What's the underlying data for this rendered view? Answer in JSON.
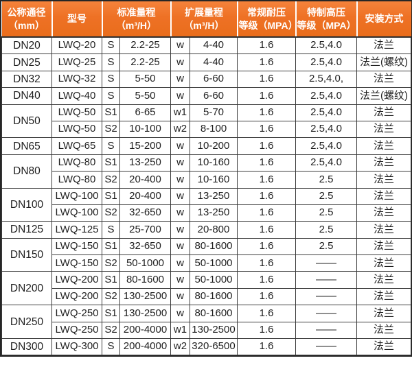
{
  "colors": {
    "header_bg": "#ee7125",
    "header_bg_top": "#f5833b",
    "header_bg_bottom": "#e96d1c",
    "header_text": "#ffffff",
    "grid_line": "#3b3b3b",
    "outer_border": "#262626",
    "body_text": "#1f1f1f",
    "row_bg": "#ffffff"
  },
  "table": {
    "columns": [
      {
        "line1": "公称通径",
        "line2": "（mm）"
      },
      {
        "line1": "型号"
      },
      {
        "line1": "标准量程",
        "line2": "（m³/H）"
      },
      {
        "line1": "扩展量程",
        "line2": "（m³/H）"
      },
      {
        "line1": "常规耐压",
        "line2": "等级（MPA）"
      },
      {
        "line1": "特制高压",
        "line2": "等级（MPA）"
      },
      {
        "line1": "安装方式"
      }
    ],
    "rows": [
      {
        "dn": "DN20",
        "dn_rowspan": 1,
        "model": "LWQ-20",
        "std_code": "S",
        "std_range": "2.2-25",
        "ext_code": "w",
        "ext_range": "4-40",
        "normal_pressure": "1.6",
        "high_pressure": "2.5,4.0",
        "install": "法兰"
      },
      {
        "dn": "DN25",
        "dn_rowspan": 1,
        "model": "LWQ-25",
        "std_code": "S",
        "std_range": "2.2-25",
        "ext_code": "w",
        "ext_range": "4-40",
        "normal_pressure": "1.6",
        "high_pressure": "2.5,4.0",
        "install": "法兰(螺纹)"
      },
      {
        "dn": "DN32",
        "dn_rowspan": 1,
        "model": "LWQ-32",
        "std_code": "S",
        "std_range": "5-50",
        "ext_code": "w",
        "ext_range": "6-60",
        "normal_pressure": "1.6",
        "high_pressure": "2.5,4.0,",
        "install": "法兰"
      },
      {
        "dn": "DN40",
        "dn_rowspan": 1,
        "model": "LWQ-40",
        "std_code": "S",
        "std_range": "5-50",
        "ext_code": "w",
        "ext_range": "6-60",
        "normal_pressure": "1.6",
        "high_pressure": "2.5,4.0",
        "install": "法兰(螺纹)"
      },
      {
        "dn": "DN50",
        "dn_rowspan": 2,
        "model": "LWQ-50",
        "std_code": "S1",
        "std_range": "6-65",
        "ext_code": "w1",
        "ext_range": "5-70",
        "normal_pressure": "1.6",
        "high_pressure": "2.5,4.0",
        "install": "法兰"
      },
      {
        "model": "LWQ-50",
        "std_code": "S2",
        "std_range": "10-100",
        "ext_code": "w2",
        "ext_range": "8-100",
        "normal_pressure": "1.6",
        "high_pressure": "2.5,4.0",
        "install": "法兰"
      },
      {
        "dn": "DN65",
        "dn_rowspan": 1,
        "model": "LWQ-65",
        "std_code": "S",
        "std_range": "15-200",
        "ext_code": "w",
        "ext_range": "10-200",
        "normal_pressure": "1.6",
        "high_pressure": "2.5,4.0",
        "install": "法兰"
      },
      {
        "dn": "DN80",
        "dn_rowspan": 2,
        "model": "LWQ-80",
        "std_code": "S1",
        "std_range": "13-250",
        "ext_code": "w",
        "ext_range": "10-160",
        "normal_pressure": "1.6",
        "high_pressure": "2.5,4.0",
        "install": "法兰"
      },
      {
        "model": "LWQ-80",
        "std_code": "S2",
        "std_range": "20-400",
        "ext_code": "w",
        "ext_range": "10-160",
        "normal_pressure": "1.6",
        "high_pressure": "2.5",
        "install": "法兰"
      },
      {
        "dn": "DN100",
        "dn_rowspan": 2,
        "model": "LWQ-100",
        "std_code": "S1",
        "std_range": "20-400",
        "ext_code": "w",
        "ext_range": "13-250",
        "normal_pressure": "1.6",
        "high_pressure": "2.5",
        "install": "法兰"
      },
      {
        "model": "LWQ-100",
        "std_code": "S2",
        "std_range": "32-650",
        "ext_code": "w",
        "ext_range": "13-250",
        "normal_pressure": "1.6",
        "high_pressure": "2.5",
        "install": "法兰"
      },
      {
        "dn": "DN125",
        "dn_rowspan": 1,
        "model": "LWQ-125",
        "std_code": "S",
        "std_range": "25-700",
        "ext_code": "w",
        "ext_range": "20-800",
        "normal_pressure": "1.6",
        "high_pressure": "2.5",
        "install": "法兰"
      },
      {
        "dn": "DN150",
        "dn_rowspan": 2,
        "model": "LWQ-150",
        "std_code": "S1",
        "std_range": "32-650",
        "ext_code": "w",
        "ext_range": "80-1600",
        "normal_pressure": "1.6",
        "high_pressure": "2.5",
        "install": "法兰"
      },
      {
        "model": "LWQ-150",
        "std_code": "S2",
        "std_range": "50-1000",
        "ext_code": "w",
        "ext_range": "50-1000",
        "normal_pressure": "1.6",
        "high_pressure": "——",
        "install": "法兰"
      },
      {
        "dn": "DN200",
        "dn_rowspan": 2,
        "model": "LWQ-200",
        "std_code": "S1",
        "std_range": "80-1600",
        "ext_code": "w",
        "ext_range": "50-1000",
        "normal_pressure": "1.6",
        "high_pressure": "——",
        "install": "法兰"
      },
      {
        "model": "LWQ-200",
        "std_code": "S2",
        "std_range": "130-2500",
        "ext_code": "w",
        "ext_range": "80-1600",
        "normal_pressure": "1.6",
        "high_pressure": "——",
        "install": "法兰"
      },
      {
        "dn": "DN250",
        "dn_rowspan": 2,
        "model": "LWQ-250",
        "std_code": "S1",
        "std_range": "130-2500",
        "ext_code": "w",
        "ext_range": "80-1600",
        "normal_pressure": "1.6",
        "high_pressure": "——",
        "install": "法兰"
      },
      {
        "model": "LWQ-250",
        "std_code": "S2",
        "std_range": "200-4000",
        "ext_code": "w1",
        "ext_range": "130-2500",
        "normal_pressure": "1.6",
        "high_pressure": "——",
        "install": "法兰"
      },
      {
        "dn": "DN300",
        "dn_rowspan": 1,
        "model": "LWQ-300",
        "std_code": "S",
        "std_range": "200-4000",
        "ext_code": "w2",
        "ext_range": "320-6500",
        "normal_pressure": "1.6",
        "high_pressure": "——",
        "install": "法兰"
      }
    ]
  }
}
